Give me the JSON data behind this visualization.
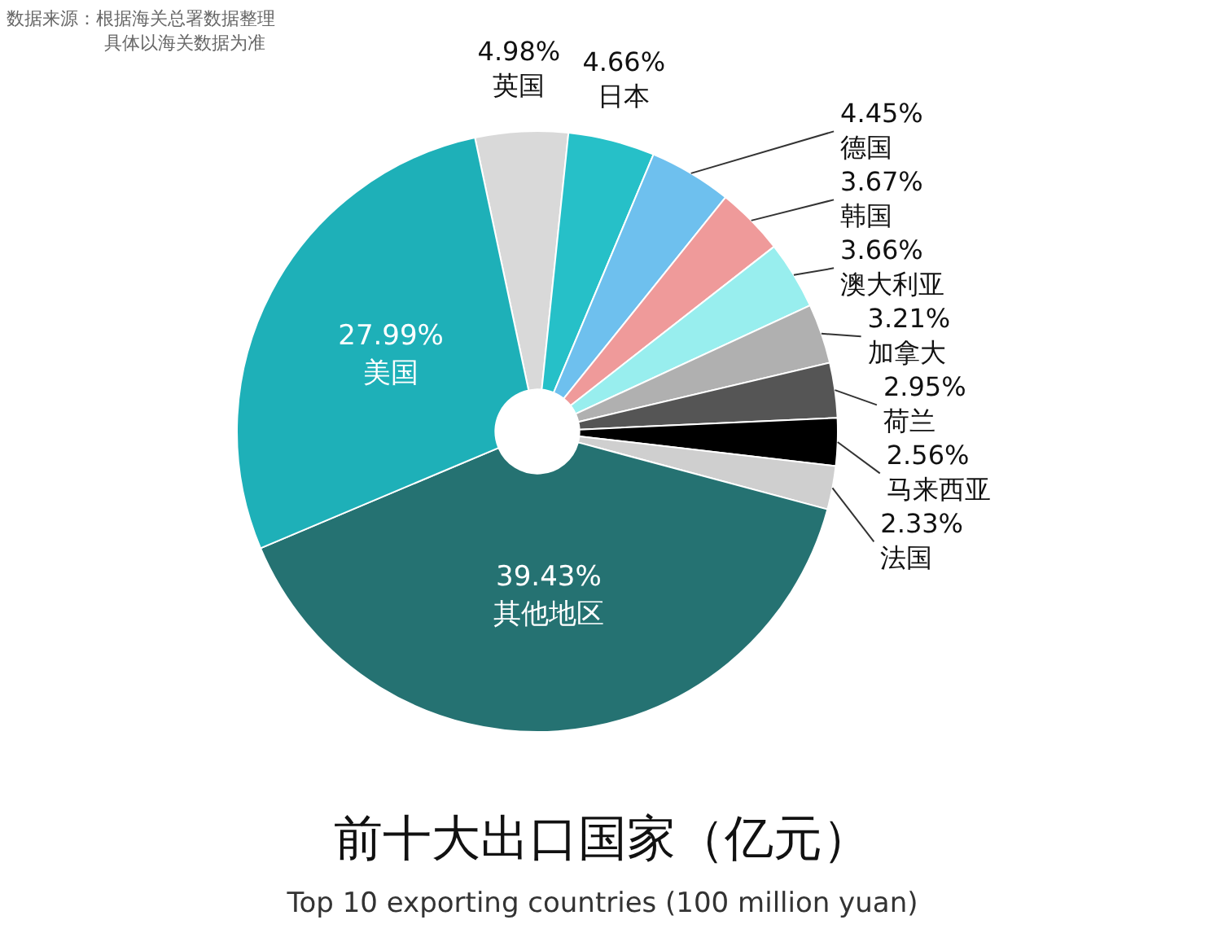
{
  "chart_data": {
    "type": "donut",
    "title": "前十大出口国家（亿元）",
    "subtitle": "Top 10 exporting countries (100 million yuan)",
    "annotations": [
      "数据来源：根据海关总署数据整理",
      "具体以海关数据为准"
    ],
    "categories": [
      "英国",
      "日本",
      "德国",
      "韩国",
      "澳大利亚",
      "加拿大",
      "荷兰",
      "马来西亚",
      "法国",
      "其他地区",
      "美国"
    ],
    "values": [
      4.98,
      4.66,
      4.45,
      3.67,
      3.66,
      3.21,
      2.95,
      2.56,
      2.33,
      39.43,
      27.99
    ],
    "value_labels": [
      "4.98%",
      "4.66%",
      "4.45%",
      "3.67%",
      "3.66%",
      "3.21%",
      "2.95%",
      "2.56%",
      "2.33%",
      "39.43%",
      "27.99%"
    ],
    "colors": [
      "#d9d9d9",
      "#26c0c8",
      "#6ec0ee",
      "#ef9a9a",
      "#98eeee",
      "#b0b0b0",
      "#555555",
      "#000000",
      "#cfcfcf",
      "#257272",
      "#1eb0b8"
    ],
    "legend": false
  }
}
